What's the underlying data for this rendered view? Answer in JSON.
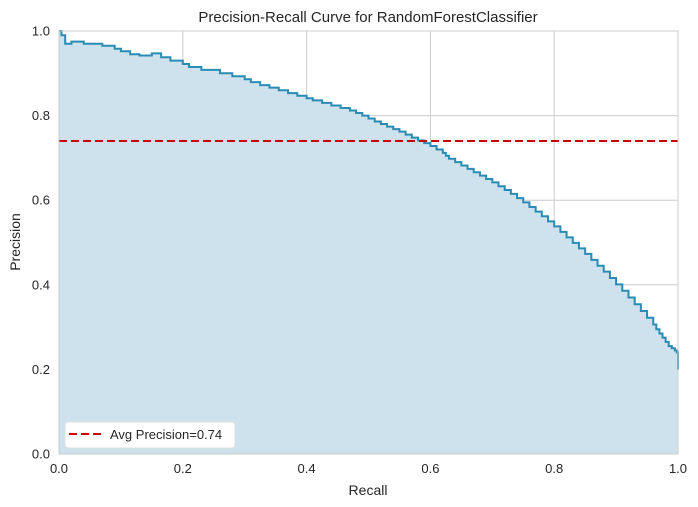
{
  "chart_data": {
    "type": "area",
    "title": "Precision-Recall Curve for RandomForestClassifier",
    "xlabel": "Recall",
    "ylabel": "Precision",
    "xlim": [
      0,
      1
    ],
    "ylim": [
      0,
      1
    ],
    "xticks": [
      "0.0",
      "0.2",
      "0.4",
      "0.6",
      "0.8",
      "1.0"
    ],
    "yticks": [
      "0.0",
      "0.2",
      "0.4",
      "0.6",
      "0.8",
      "1.0"
    ],
    "grid": true,
    "legend_position": "lower-left",
    "curve": {
      "color": "#2a8cb5",
      "fill_color": "#cde2ec",
      "recall": [
        0.0,
        0.004,
        0.01,
        0.02,
        0.04,
        0.07,
        0.09,
        0.1,
        0.115,
        0.13,
        0.15,
        0.165,
        0.18,
        0.2,
        0.21,
        0.23,
        0.26,
        0.28,
        0.3,
        0.31,
        0.325,
        0.34,
        0.355,
        0.37,
        0.385,
        0.4,
        0.41,
        0.425,
        0.44,
        0.455,
        0.47,
        0.48,
        0.49,
        0.5,
        0.51,
        0.52,
        0.53,
        0.54,
        0.55,
        0.56,
        0.57,
        0.58,
        0.59,
        0.6,
        0.61,
        0.62,
        0.625,
        0.63,
        0.64,
        0.65,
        0.66,
        0.67,
        0.68,
        0.69,
        0.7,
        0.71,
        0.72,
        0.73,
        0.74,
        0.75,
        0.76,
        0.77,
        0.78,
        0.79,
        0.8,
        0.81,
        0.82,
        0.83,
        0.84,
        0.85,
        0.86,
        0.87,
        0.88,
        0.89,
        0.9,
        0.91,
        0.92,
        0.93,
        0.94,
        0.95,
        0.96,
        0.965,
        0.97,
        0.975,
        0.98,
        0.985,
        0.99,
        0.995,
        0.998,
        1.0,
        1.0
      ],
      "precision": [
        1.0,
        0.99,
        0.97,
        0.975,
        0.97,
        0.965,
        0.958,
        0.952,
        0.945,
        0.942,
        0.947,
        0.938,
        0.93,
        0.922,
        0.915,
        0.908,
        0.9,
        0.893,
        0.886,
        0.879,
        0.872,
        0.866,
        0.86,
        0.853,
        0.847,
        0.841,
        0.836,
        0.83,
        0.824,
        0.818,
        0.812,
        0.806,
        0.8,
        0.793,
        0.786,
        0.78,
        0.774,
        0.768,
        0.762,
        0.755,
        0.748,
        0.741,
        0.735,
        0.728,
        0.72,
        0.712,
        0.705,
        0.698,
        0.69,
        0.682,
        0.674,
        0.666,
        0.658,
        0.65,
        0.642,
        0.633,
        0.624,
        0.615,
        0.605,
        0.595,
        0.584,
        0.573,
        0.562,
        0.55,
        0.538,
        0.525,
        0.512,
        0.499,
        0.486,
        0.473,
        0.459,
        0.445,
        0.431,
        0.416,
        0.401,
        0.386,
        0.37,
        0.354,
        0.338,
        0.322,
        0.306,
        0.295,
        0.285,
        0.275,
        0.265,
        0.255,
        0.25,
        0.245,
        0.24,
        0.2,
        0.2
      ]
    },
    "avg_precision": {
      "value": 0.74,
      "color": "#cc0000",
      "label": "Avg Precision=0.74"
    }
  }
}
